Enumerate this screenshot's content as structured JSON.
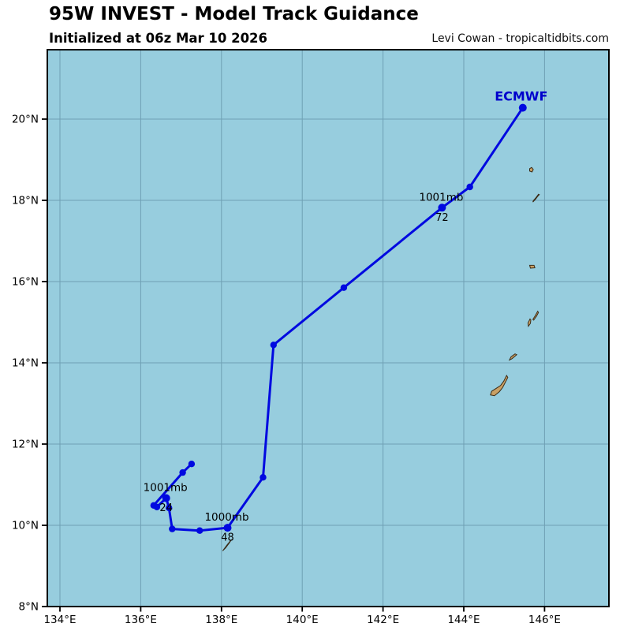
{
  "header": {
    "title": "95W INVEST - Model Track Guidance",
    "subtitle": "Initialized at 06z Mar 10 2026",
    "credit": "Levi Cowan - tropicaltidbits.com"
  },
  "colors": {
    "sea": "#97cdde",
    "grid": "#6fa0b4",
    "border": "#000000",
    "track": "#0009e0",
    "model_label": "#0000cc",
    "island_fill": "#c9a065",
    "island_stroke": "#3b2b16",
    "text": "#000000"
  },
  "chart_data": {
    "type": "line",
    "title": "95W INVEST - Model Track Guidance",
    "subtitle": "Initialized at 06z Mar 10 2026",
    "credit": "Levi Cowan - tropicaltidbits.com",
    "projection": {
      "lon_min": 133.6875,
      "lon_max": 147.59375,
      "lat_min": 8.0,
      "lat_max": 21.70874
    },
    "grid": {
      "lon_ticks": [
        134,
        136,
        138,
        140,
        142,
        144,
        146
      ],
      "lon_labels": [
        "134°E",
        "136°E",
        "138°E",
        "140°E",
        "142°E",
        "144°E",
        "146°E"
      ],
      "lat_ticks": [
        8,
        10,
        12,
        14,
        16,
        18,
        20
      ],
      "lat_labels": [
        "8°N",
        "10°N",
        "12°N",
        "14°N",
        "16°N",
        "18°N",
        "20°N"
      ]
    },
    "series": [
      {
        "name": "ECMWF",
        "points": [
          {
            "hour": 0,
            "lon": 137.26,
            "lat": 11.51
          },
          {
            "hour": 6,
            "lon": 137.04,
            "lat": 11.3
          },
          {
            "hour": 12,
            "lon": 136.32,
            "lat": 10.49
          },
          {
            "hour": 18,
            "lon": 136.4,
            "lat": 10.45
          },
          {
            "hour": 24,
            "lon": 136.63,
            "lat": 10.67,
            "pressure": "1001mb",
            "hour_label": "24"
          },
          {
            "hour": 30,
            "lon": 136.7,
            "lat": 10.43
          },
          {
            "hour": 36,
            "lon": 136.78,
            "lat": 9.91
          },
          {
            "hour": 42,
            "lon": 137.46,
            "lat": 9.87
          },
          {
            "hour": 48,
            "lon": 138.15,
            "lat": 9.94,
            "pressure": "1000mb",
            "hour_label": "48"
          },
          {
            "hour": 54,
            "lon": 139.03,
            "lat": 11.18
          },
          {
            "hour": 60,
            "lon": 139.29,
            "lat": 14.44
          },
          {
            "hour": 66,
            "lon": 141.03,
            "lat": 15.85
          },
          {
            "hour": 72,
            "lon": 143.46,
            "lat": 17.82,
            "pressure": "1001mb",
            "hour_label": "72"
          },
          {
            "hour": 78,
            "lon": 144.15,
            "lat": 18.33
          },
          {
            "hour": 84,
            "lon": 145.46,
            "lat": 20.28,
            "end_label": "ECMWF"
          }
        ]
      }
    ],
    "islands": [
      {
        "name": "island-18.8N",
        "polygon": [
          [
            145.63,
            18.78
          ],
          [
            145.68,
            18.81
          ],
          [
            145.72,
            18.76
          ],
          [
            145.69,
            18.7
          ],
          [
            145.63,
            18.72
          ]
        ]
      },
      {
        "name": "island-18.1N",
        "polygon": [
          [
            145.85,
            18.15
          ],
          [
            145.79,
            18.07
          ],
          [
            145.72,
            17.99
          ],
          [
            145.71,
            17.96
          ],
          [
            145.77,
            18.02
          ],
          [
            145.83,
            18.1
          ],
          [
            145.87,
            18.14
          ]
        ]
      },
      {
        "name": "island-16.4N",
        "polygon": [
          [
            145.63,
            16.4
          ],
          [
            145.74,
            16.4
          ],
          [
            145.76,
            16.34
          ],
          [
            145.65,
            16.33
          ]
        ]
      },
      {
        "name": "island-saipan",
        "polygon": [
          [
            145.83,
            15.27
          ],
          [
            145.77,
            15.16
          ],
          [
            145.71,
            15.07
          ],
          [
            145.73,
            15.05
          ],
          [
            145.8,
            15.15
          ],
          [
            145.85,
            15.24
          ]
        ]
      },
      {
        "name": "island-tinian",
        "polygon": [
          [
            145.64,
            15.08
          ],
          [
            145.59,
            14.98
          ],
          [
            145.6,
            14.9
          ],
          [
            145.65,
            14.97
          ],
          [
            145.66,
            15.06
          ]
        ]
      },
      {
        "name": "island-rota",
        "polygon": [
          [
            145.31,
            14.2
          ],
          [
            145.19,
            14.1
          ],
          [
            145.13,
            14.07
          ],
          [
            145.17,
            14.15
          ],
          [
            145.27,
            14.22
          ]
        ]
      },
      {
        "name": "island-guam",
        "polygon": [
          [
            145.06,
            13.69
          ],
          [
            144.99,
            13.55
          ],
          [
            144.91,
            13.44
          ],
          [
            144.8,
            13.37
          ],
          [
            144.69,
            13.3
          ],
          [
            144.66,
            13.21
          ],
          [
            144.76,
            13.19
          ],
          [
            144.88,
            13.29
          ],
          [
            144.96,
            13.39
          ],
          [
            145.03,
            13.52
          ],
          [
            145.09,
            13.64
          ]
        ]
      },
      {
        "name": "island-yap",
        "polygon": [
          [
            138.25,
            9.65
          ],
          [
            138.14,
            9.52
          ],
          [
            138.05,
            9.4
          ],
          [
            138.03,
            9.37
          ],
          [
            138.1,
            9.44
          ],
          [
            138.19,
            9.56
          ]
        ]
      }
    ]
  }
}
